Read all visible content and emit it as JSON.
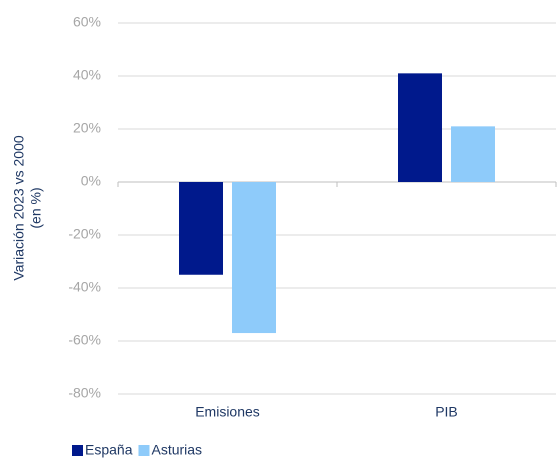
{
  "chart_data": {
    "type": "bar",
    "y_label": [
      "Variación 2023 vs 2000",
      "(en %)"
    ],
    "categories": [
      "Emisiones",
      "PIB"
    ],
    "series": [
      {
        "name": "España",
        "color": "#00198c",
        "values": [
          -35,
          41
        ]
      },
      {
        "name": "Asturias",
        "color": "#8ecbfa",
        "values": [
          -57,
          21
        ]
      }
    ],
    "ylim": [
      -80,
      60
    ],
    "yticks": [
      {
        "value": -80,
        "label": "-80%"
      },
      {
        "value": -60,
        "label": "-60%"
      },
      {
        "value": -40,
        "label": "-40%"
      },
      {
        "value": -20,
        "label": "-20%"
      },
      {
        "value": 0,
        "label": "0%"
      },
      {
        "value": 20,
        "label": "20%"
      },
      {
        "value": 40,
        "label": "40%"
      },
      {
        "value": 60,
        "label": "60%"
      }
    ],
    "grid": true,
    "legend": "bottom-left"
  }
}
